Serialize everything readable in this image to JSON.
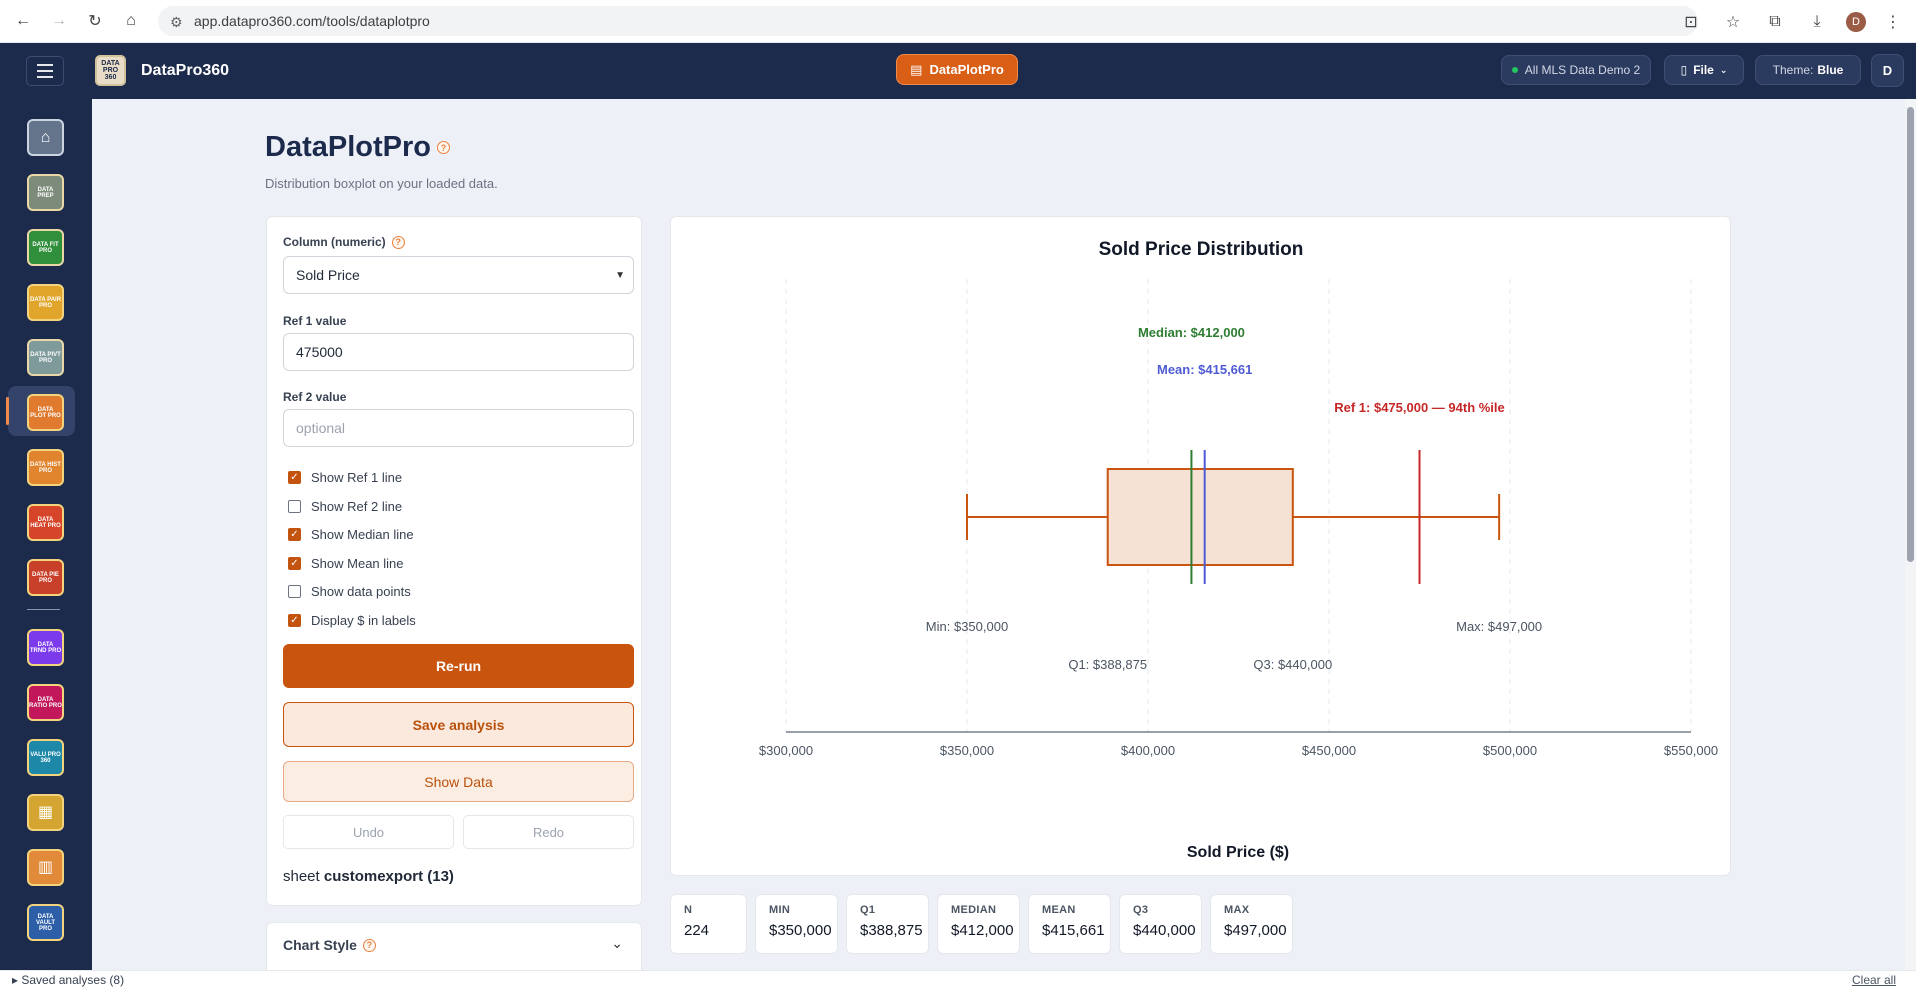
{
  "browser": {
    "url": "app.datapro360.com/tools/dataplotpro",
    "profile_initial": "D"
  },
  "appbar": {
    "brand": "DataPro360",
    "logo_text": "DATA PRO 360",
    "active_tool": "DataPlotPro",
    "dataset": "All MLS Data Demo 2",
    "file_label": "File",
    "theme_label": "Theme:",
    "theme_value": "Blue",
    "user_initial": "D"
  },
  "sidebar": {
    "items": [
      {
        "name": "home",
        "text": "⌂",
        "bg": "#64748b",
        "border": "#cbd5e1",
        "color": "#ffffff"
      },
      {
        "name": "dataprep",
        "text": "DATA PREP",
        "bg": "#7c8b7a",
        "border": "#e9d8a6",
        "color": "#ffffff"
      },
      {
        "name": "datafitpro",
        "text": "DATA FIT PRO",
        "bg": "#2f8f3a",
        "border": "#e9d8a6",
        "color": "#ffffff"
      },
      {
        "name": "datapairpro",
        "text": "DATA PAIR PRO",
        "bg": "#e0a52a",
        "border": "#f3d47c",
        "color": "#ffffff"
      },
      {
        "name": "datapivtpro",
        "text": "DATA PIVT PRO",
        "bg": "#7e9a9a",
        "border": "#e9d8a6",
        "color": "#ffffff"
      },
      {
        "name": "dataplotpro",
        "text": "DATA PLOT PRO",
        "bg": "#e07a2e",
        "border": "#f3d47c",
        "color": "#ffffff"
      },
      {
        "name": "datahistpro",
        "text": "DATA HIST PRO",
        "bg": "#e0852e",
        "border": "#f3d47c",
        "color": "#ffffff"
      },
      {
        "name": "dataheatpro",
        "text": "DATA HEAT PRO",
        "bg": "#d6452a",
        "border": "#f3d47c",
        "color": "#ffffff"
      },
      {
        "name": "datapiepro",
        "text": "DATA PIE PRO",
        "bg": "#c9402a",
        "border": "#f3d47c",
        "color": "#ffffff"
      },
      {
        "name": "datatrndpro",
        "text": "DATA TRND PRO",
        "bg": "#7c3aed",
        "border": "#f3d47c",
        "color": "#ffffff"
      },
      {
        "name": "dataratiopro",
        "text": "DATA RATIO PRO",
        "bg": "#c2185b",
        "border": "#f3d47c",
        "color": "#ffffff"
      },
      {
        "name": "valupro360",
        "text": "VALU PRO 360",
        "bg": "#1e88a8",
        "border": "#f3d47c",
        "color": "#ffffff"
      },
      {
        "name": "grid-tool",
        "text": "▦",
        "bg": "#d4a531",
        "border": "#f3d47c",
        "color": "#ffffff"
      },
      {
        "name": "report-tool",
        "text": "▥",
        "bg": "#e08a3a",
        "border": "#f3d47c",
        "color": "#ffffff"
      },
      {
        "name": "datavaultpro",
        "text": "DATA VAULT PRO",
        "bg": "#2d5fa8",
        "border": "#f3d47c",
        "color": "#ffffff"
      }
    ]
  },
  "page": {
    "title": "DataPlotPro",
    "subtitle": "Distribution boxplot on your loaded data."
  },
  "controls": {
    "column_label": "Column (numeric)",
    "column_value": "Sold Price",
    "ref1_label": "Ref 1 value",
    "ref1_value": "475000",
    "ref2_label": "Ref 2 value",
    "ref2_placeholder": "optional",
    "checkboxes": [
      {
        "label": "Show Ref 1 line",
        "checked": true
      },
      {
        "label": "Show Ref 2 line",
        "checked": false
      },
      {
        "label": "Show Median line",
        "checked": true
      },
      {
        "label": "Show Mean line",
        "checked": true
      },
      {
        "label": "Show data points",
        "checked": false
      },
      {
        "label": "Display $ in labels",
        "checked": true
      }
    ],
    "rerun": "Re-run",
    "save": "Save analysis",
    "show_data": "Show Data",
    "undo": "Undo",
    "redo": "Redo",
    "sheet_label": "sheet",
    "sheet_name": "customexport (13)",
    "chart_style": "Chart Style"
  },
  "chart_data": {
    "type": "boxplot",
    "title": "Sold Price Distribution",
    "xlabel": "Sold Price ($)",
    "xlim": [
      300000,
      550000
    ],
    "ticks": [
      "$300,000",
      "$350,000",
      "$400,000",
      "$450,000",
      "$500,000",
      "$550,000"
    ],
    "tick_values": [
      300000,
      350000,
      400000,
      450000,
      500000,
      550000
    ],
    "grid": true,
    "min": 350000,
    "q1": 388875,
    "median": 412000,
    "mean": 415661,
    "q3": 440000,
    "max": 497000,
    "ref1": 475000,
    "labels": {
      "median": "Median: $412,000",
      "mean": "Mean: $415,661",
      "ref1": "Ref 1: $475,000 — 94th %ile",
      "min": "Min: $350,000",
      "max": "Max: $497,000",
      "q1": "Q1: $388,875",
      "q3": "Q3: $440,000"
    },
    "colors": {
      "box": "#c9540d",
      "box_fill": "#f6e1d5",
      "median": "#2e7d32",
      "mean": "#4f5bd5",
      "ref1": "#c62828"
    }
  },
  "stats": [
    {
      "key": "N",
      "value": "224"
    },
    {
      "key": "MIN",
      "value": "$350,000"
    },
    {
      "key": "Q1",
      "value": "$388,875"
    },
    {
      "key": "MEDIAN",
      "value": "$412,000"
    },
    {
      "key": "MEAN",
      "value": "$415,661"
    },
    {
      "key": "Q3",
      "value": "$440,000"
    },
    {
      "key": "MAX",
      "value": "$497,000"
    }
  ],
  "footer": {
    "saved": "Saved analyses (8)",
    "clear": "Clear all"
  }
}
